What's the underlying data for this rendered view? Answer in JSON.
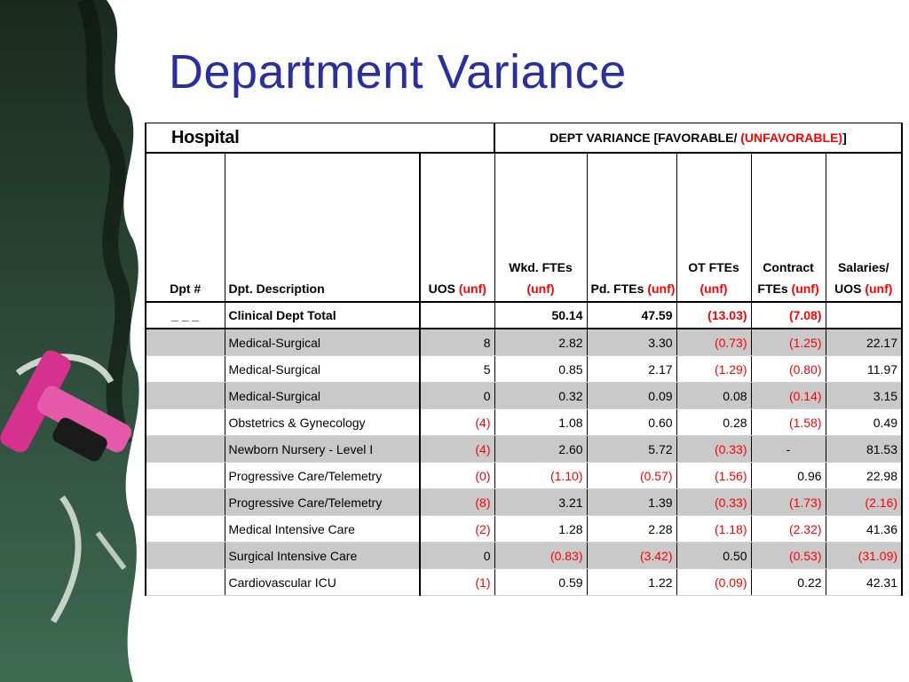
{
  "title": "Department Variance",
  "table": {
    "hospital_label": "Hospital",
    "variance_header": {
      "prefix": "DEPT VARIANCE [FAVORABLE/ ",
      "unfavorable": "(UNFAVORABLE)",
      "suffix": "]"
    },
    "columns": {
      "dpt": "Dpt #",
      "desc": "Dpt. Description",
      "uos": {
        "main": "UOS ",
        "unf": "(unf)"
      },
      "wkd": {
        "line1": "Wkd. FTEs",
        "unf": "(unf)"
      },
      "pd": {
        "main": "Pd. FTEs ",
        "unf": "(unf)"
      },
      "ot": {
        "line1": "OT FTEs",
        "unf": "(unf)"
      },
      "contract": {
        "line1": "Contract",
        "line2": "FTEs ",
        "unf": "(unf)"
      },
      "salaries": {
        "line1": "Salaries/",
        "line2": "UOS ",
        "unf": "(unf)"
      }
    },
    "total": {
      "dpt": "_ _ _",
      "desc": "Clinical Dept Total",
      "uos": "",
      "wkd": "50.14",
      "pd": "47.59",
      "ot": "(13.03)",
      "contract": "(7.08)",
      "salaries": ""
    },
    "rows": [
      {
        "desc": "Medical-Surgical",
        "uos": "8",
        "wkd": "2.82",
        "pd": "3.30",
        "ot": "(0.73)",
        "contract": "(1.25)",
        "salaries": "22.17"
      },
      {
        "desc": "Medical-Surgical",
        "uos": "5",
        "wkd": "0.85",
        "pd": "2.17",
        "ot": "(1.29)",
        "contract": "(0.80)",
        "salaries": "11.97"
      },
      {
        "desc": "Medical-Surgical",
        "uos": "0",
        "wkd": "0.32",
        "pd": "0.09",
        "ot": "0.08",
        "contract": "(0.14)",
        "salaries": "3.15"
      },
      {
        "desc": "Obstetrics & Gynecology",
        "uos": "(4)",
        "wkd": "1.08",
        "pd": "0.60",
        "ot": "0.28",
        "contract": "(1.58)",
        "salaries": "0.49"
      },
      {
        "desc": "Newborn Nursery - Level I",
        "uos": "(4)",
        "wkd": "2.60",
        "pd": "5.72",
        "ot": "(0.33)",
        "contract": "-",
        "salaries": "81.53"
      },
      {
        "desc": "Progressive Care/Telemetry",
        "uos": "(0)",
        "wkd": "(1.10)",
        "pd": "(0.57)",
        "ot": "(1.56)",
        "contract": "0.96",
        "salaries": "22.98"
      },
      {
        "desc": "Progressive Care/Telemetry",
        "uos": "(8)",
        "wkd": "3.21",
        "pd": "1.39",
        "ot": "(0.33)",
        "contract": "(1.73)",
        "salaries": "(2.16)"
      },
      {
        "desc": "Medical Intensive Care",
        "uos": "(2)",
        "wkd": "1.28",
        "pd": "2.28",
        "ot": "(1.18)",
        "contract": "(2.32)",
        "salaries": "41.36"
      },
      {
        "desc": "Surgical Intensive Care",
        "uos": "0",
        "wkd": "(0.83)",
        "pd": "(3.42)",
        "ot": "0.50",
        "contract": "(0.53)",
        "salaries": "(31.09)"
      },
      {
        "desc": "Cardiovascular ICU",
        "uos": "(1)",
        "wkd": "0.59",
        "pd": "1.22",
        "ot": "(0.09)",
        "contract": "0.22",
        "salaries": "42.31"
      }
    ]
  }
}
